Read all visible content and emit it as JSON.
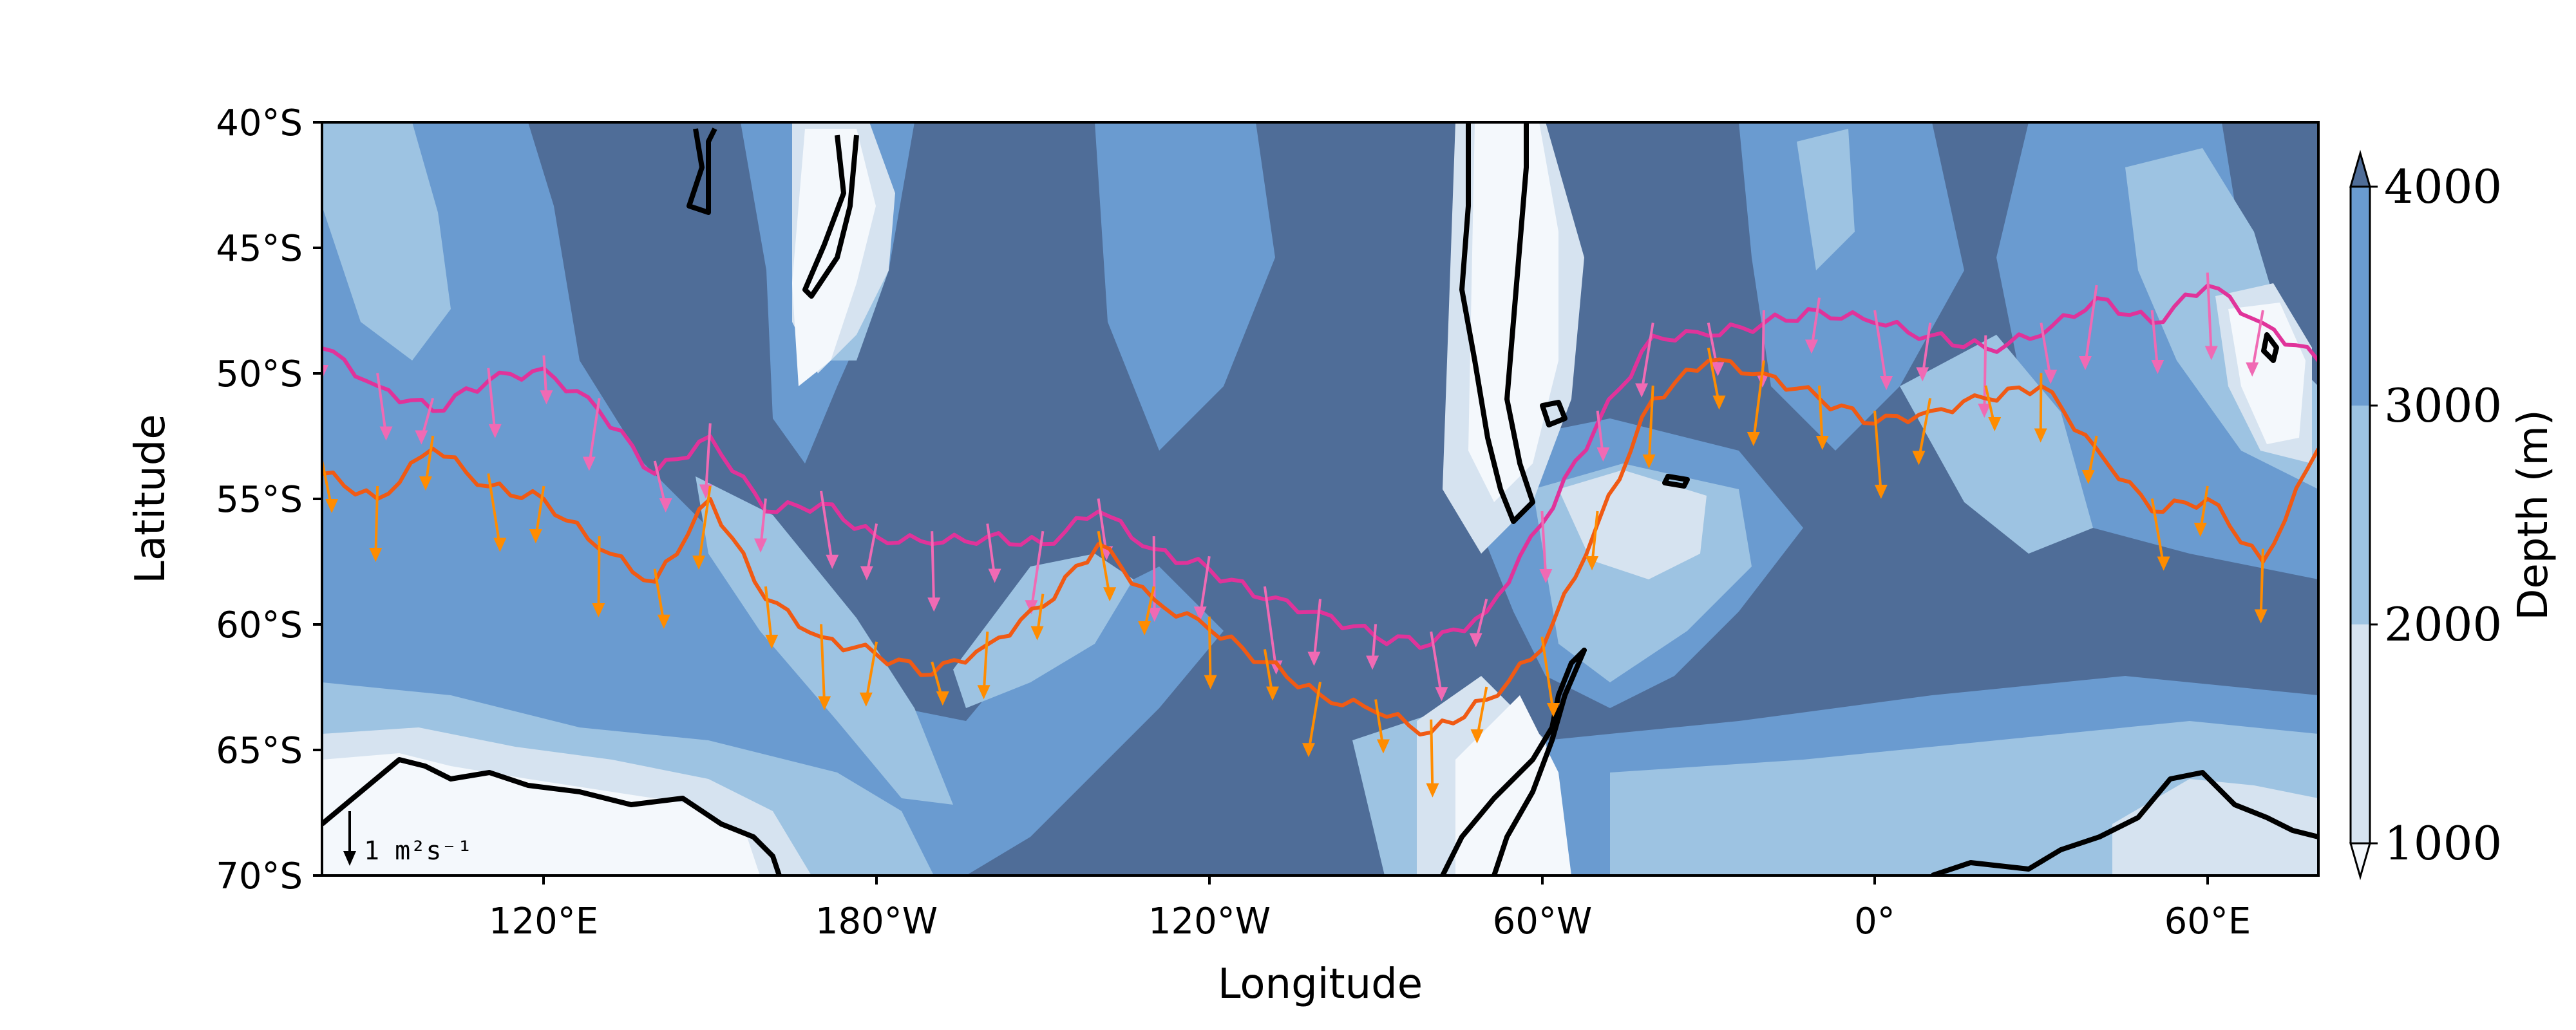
{
  "chart_data": {
    "type": "line",
    "title": "",
    "xlabel": "Longitude",
    "ylabel": "Latitude",
    "x_ticks": [
      "120°E",
      "180°W",
      "120°W",
      "60°W",
      "0°",
      "60°E"
    ],
    "y_ticks": [
      "40°S",
      "45°S",
      "50°S",
      "55°S",
      "60°S",
      "65°S",
      "70°S"
    ],
    "xlim_deg_east": [
      80,
      440
    ],
    "ylim_deg": [
      -70,
      -40
    ],
    "grid": false,
    "background_field": {
      "name": "Depth (m)",
      "colorbar_label": "Depth (m)",
      "levels": [
        1000,
        2000,
        3000,
        4000
      ],
      "level_labels": [
        "1000",
        "2000",
        "3000",
        "4000"
      ],
      "colors": [
        "#f4f8fc",
        "#d6e3f0",
        "#9dc3e2",
        "#6a9bd0",
        "#4f6d98"
      ],
      "extend": "both"
    },
    "vector_scale_label": "1 m²s⁻¹",
    "series": [
      {
        "color": "#e0339a",
        "arrow_color": "#f06ab4",
        "x": [
          80,
          90,
          100,
          110,
          120,
          130,
          140,
          150,
          160,
          170,
          180,
          190,
          200,
          210,
          220,
          230,
          240,
          250,
          260,
          270,
          280,
          290,
          300,
          310,
          320,
          330,
          340,
          350,
          360,
          370,
          380,
          390,
          400,
          410,
          420,
          430,
          440
        ],
        "y": [
          -49,
          -50.5,
          -51.5,
          -50.3,
          -49.8,
          -51.5,
          -54,
          -52.5,
          -55.5,
          -55.2,
          -56.5,
          -56.8,
          -56.5,
          -56.8,
          -55.5,
          -57,
          -57.8,
          -59,
          -59.5,
          -60.5,
          -60.8,
          -59.5,
          -56,
          -52,
          -48.5,
          -48.5,
          -48,
          -47.5,
          -48,
          -48.5,
          -49,
          -48.5,
          -47,
          -48,
          -46.5,
          -48,
          -49.5
        ]
      },
      {
        "color": "#f05a14",
        "arrow_color": "#ff8c00",
        "x": [
          80,
          90,
          100,
          110,
          120,
          130,
          140,
          150,
          160,
          170,
          180,
          190,
          200,
          210,
          220,
          230,
          240,
          250,
          260,
          270,
          280,
          290,
          300,
          310,
          320,
          330,
          340,
          350,
          360,
          370,
          380,
          390,
          400,
          410,
          420,
          430,
          440
        ],
        "y": [
          -54,
          -55,
          -53,
          -54.5,
          -55,
          -57,
          -58.3,
          -55,
          -59,
          -60.5,
          -61.2,
          -62,
          -60.8,
          -59.3,
          -56.8,
          -59,
          -60.2,
          -61.5,
          -62.8,
          -63.5,
          -64.3,
          -63,
          -61,
          -56,
          -51,
          -49.5,
          -50,
          -51,
          -52,
          -51.5,
          -51,
          -50.5,
          -53,
          -55.5,
          -55,
          -57.5,
          -53
        ]
      }
    ]
  }
}
